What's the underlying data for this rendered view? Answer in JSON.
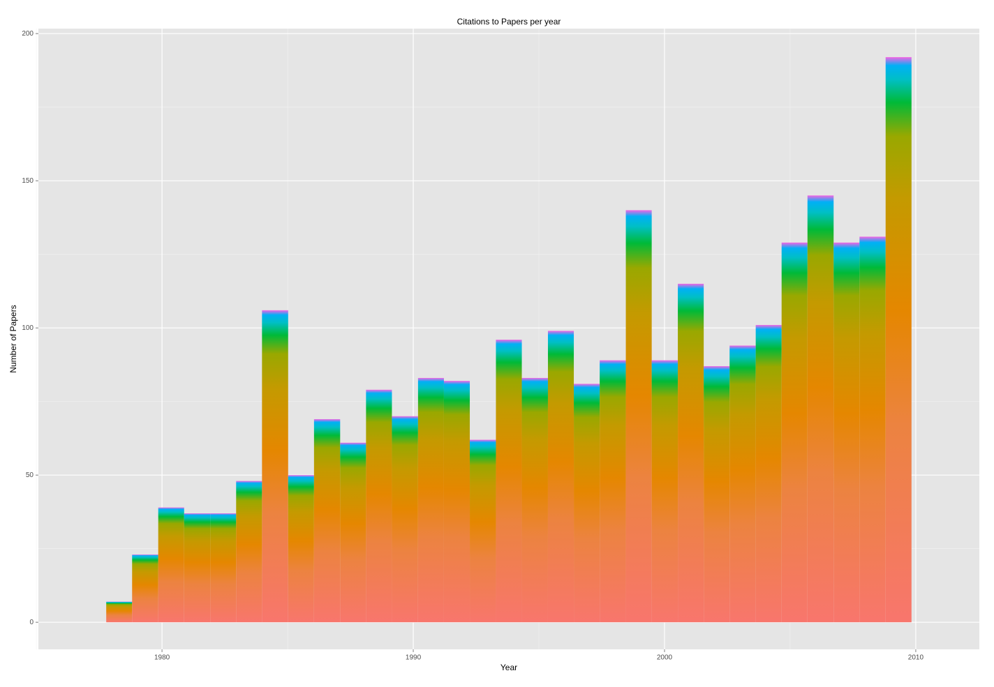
{
  "chart_data": {
    "type": "histogram",
    "title": "Citations to Papers per year",
    "x_label": "Year",
    "y_label": "Number of Papers",
    "bins": [
      1977.78,
      1978.81,
      1979.85,
      1980.88,
      1981.92,
      1982.95,
      1983.98,
      1985.02,
      1986.05,
      1987.09,
      1988.12,
      1989.15,
      1990.19,
      1991.22,
      1992.25,
      1993.29,
      1994.32,
      1995.36,
      1996.39,
      1997.42,
      1998.46,
      1999.49,
      2000.53,
      2001.56,
      2002.59,
      2003.63,
      2004.66,
      2005.69,
      2006.73,
      2007.76,
      2008.8,
      2009.83
    ],
    "values": [
      7,
      23,
      39,
      37,
      37,
      48,
      106,
      50,
      69,
      61,
      79,
      70,
      83,
      82,
      62,
      96,
      83,
      99,
      81,
      89,
      140,
      89,
      115,
      87,
      94,
      101,
      129,
      145,
      129,
      131,
      192
    ],
    "xlim": [
      1975.08,
      2012.53
    ],
    "ylim": [
      -9.2,
      201.7
    ],
    "xticks": [
      1980,
      1990,
      2000,
      2010
    ],
    "yticks": [
      0,
      50,
      100,
      150,
      200
    ],
    "minor_xticks": [
      1975,
      1985,
      1995,
      2005
    ],
    "minor_yticks": [
      25,
      75,
      125,
      175
    ],
    "grid": true
  }
}
